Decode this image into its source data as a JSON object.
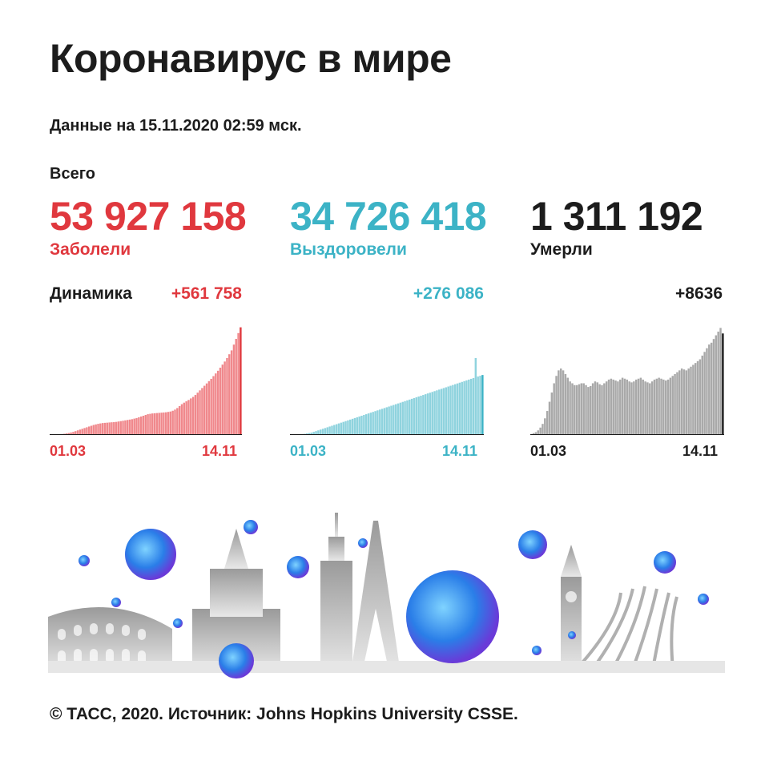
{
  "header": {
    "title": "Коронавирус в мире",
    "date": "Данные на 15.11.2020 02:59 мск.",
    "total_label": "Всего",
    "dynamics_label": "Динамика"
  },
  "stats": [
    {
      "value": "53 927 158",
      "label": "Заболели",
      "delta": "+561 758",
      "color": "#e0383e"
    },
    {
      "value": "34 726 418",
      "label": "Выздоровели",
      "delta": "+276 086",
      "color": "#3cb3c6"
    },
    {
      "value": "1 311 192",
      "label": "Умерли",
      "delta": "+8636",
      "color": "#1c1c1c"
    }
  ],
  "chart_data": [
    {
      "type": "bar",
      "series_name": "Заболели (ежедневно)",
      "x_start": "01.03",
      "x_end": "14.11",
      "fill": "#f0888c",
      "edge": "#e0383e",
      "values": [
        2,
        2,
        3,
        3,
        4,
        5,
        6,
        8,
        10,
        13,
        16,
        20,
        24,
        28,
        32,
        36,
        40,
        44,
        48,
        52,
        55,
        58,
        60,
        62,
        63,
        64,
        65,
        66,
        67,
        68,
        70,
        72,
        74,
        76,
        78,
        80,
        82,
        85,
        88,
        92,
        96,
        100,
        104,
        108,
        110,
        112,
        113,
        114,
        115,
        116,
        117,
        118,
        120,
        122,
        126,
        132,
        140,
        150,
        160,
        168,
        175,
        182,
        190,
        198,
        208,
        220,
        232,
        244,
        256,
        268,
        280,
        292,
        306,
        320,
        334,
        350,
        366,
        382,
        400,
        420,
        440,
        470,
        500,
        530,
        560
      ],
      "ylim": [
        0,
        600
      ]
    },
    {
      "type": "bar",
      "series_name": "Выздоровели (ежедневно)",
      "x_start": "01.03",
      "x_end": "14.11",
      "fill": "#8fd3de",
      "edge": "#3cb3c6",
      "values": [
        1,
        1,
        1,
        1,
        2,
        2,
        3,
        4,
        5,
        6,
        8,
        10,
        12,
        14,
        16,
        18,
        20,
        22,
        24,
        26,
        28,
        30,
        32,
        34,
        36,
        38,
        40,
        42,
        44,
        46,
        48,
        50,
        52,
        54,
        56,
        58,
        60,
        62,
        64,
        66,
        68,
        70,
        72,
        74,
        76,
        78,
        80,
        82,
        84,
        86,
        88,
        90,
        92,
        94,
        96,
        98,
        100,
        102,
        104,
        106,
        108,
        110,
        112,
        114,
        116,
        118,
        120,
        122,
        124,
        126,
        128,
        130,
        132,
        134,
        136,
        138,
        140,
        142,
        144,
        146,
        148,
        200,
        152,
        154,
        156
      ],
      "ylim": [
        0,
        300
      ]
    },
    {
      "type": "bar",
      "series_name": "Умерли (ежедневно)",
      "x_start": "01.03",
      "x_end": "14.11",
      "fill": "#a9a9a9",
      "edge": "#1c1c1c",
      "values": [
        1,
        2,
        3,
        5,
        8,
        12,
        18,
        26,
        36,
        46,
        56,
        64,
        70,
        72,
        70,
        66,
        62,
        58,
        56,
        54,
        54,
        55,
        56,
        56,
        54,
        52,
        53,
        56,
        58,
        57,
        55,
        54,
        56,
        58,
        60,
        61,
        60,
        59,
        58,
        60,
        62,
        61,
        60,
        58,
        57,
        58,
        60,
        61,
        62,
        60,
        58,
        57,
        56,
        58,
        60,
        61,
        62,
        61,
        60,
        59,
        60,
        62,
        64,
        66,
        68,
        70,
        72,
        71,
        70,
        72,
        74,
        76,
        78,
        80,
        82,
        86,
        90,
        94,
        98,
        100,
        104,
        108,
        112,
        116,
        110
      ],
      "ylim": [
        0,
        125
      ]
    }
  ],
  "footer": "© ТАСС, 2020. Источник: Johns Hopkins University CSSE."
}
